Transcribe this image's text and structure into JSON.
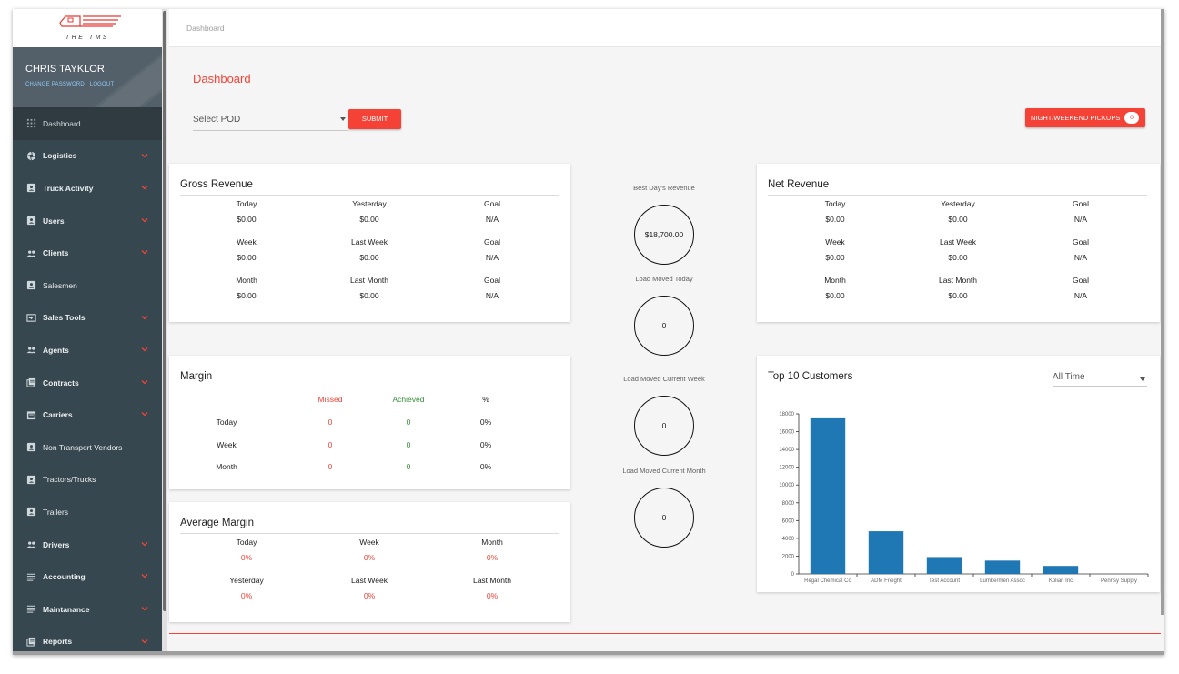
{
  "app": {
    "logo_text": "THE TMS",
    "breadcrumb": "Dashboard"
  },
  "user": {
    "name": "CHRIS TAYKLOR",
    "change_password": "CHANGE PASSWORD",
    "logout": "LOGOUT"
  },
  "sidebar": {
    "items": [
      {
        "label": "Dashboard",
        "icon": "dashboard-icon",
        "expandable": false,
        "bold": false
      },
      {
        "label": "Logistics",
        "icon": "aperture-icon",
        "expandable": true,
        "bold": true
      },
      {
        "label": "Truck Activity",
        "icon": "contact-card-icon",
        "expandable": true,
        "bold": true
      },
      {
        "label": "Users",
        "icon": "contact-card-icon",
        "expandable": true,
        "bold": true
      },
      {
        "label": "Clients",
        "icon": "people-icon",
        "expandable": true,
        "bold": true
      },
      {
        "label": "Salesmen",
        "icon": "contact-card-icon",
        "expandable": false,
        "bold": false
      },
      {
        "label": "Sales Tools",
        "icon": "input-icon",
        "expandable": true,
        "bold": true
      },
      {
        "label": "Agents",
        "icon": "people-icon",
        "expandable": true,
        "bold": true
      },
      {
        "label": "Contracts",
        "icon": "library-icon",
        "expandable": true,
        "bold": true
      },
      {
        "label": "Carriers",
        "icon": "calendar-card-icon",
        "expandable": true,
        "bold": true
      },
      {
        "label": "Non Transport Vendors",
        "icon": "contact-card-icon",
        "expandable": false,
        "bold": false
      },
      {
        "label": "Tractors/Trucks",
        "icon": "contact-card-icon",
        "expandable": false,
        "bold": false
      },
      {
        "label": "Trailers",
        "icon": "contact-card-icon",
        "expandable": false,
        "bold": false
      },
      {
        "label": "Drivers",
        "icon": "people-icon",
        "expandable": true,
        "bold": true
      },
      {
        "label": "Accounting",
        "icon": "lines-icon",
        "expandable": true,
        "bold": true
      },
      {
        "label": "Maintanance",
        "icon": "lines-icon",
        "expandable": true,
        "bold": true
      },
      {
        "label": "Reports",
        "icon": "library-icon",
        "expandable": true,
        "bold": true
      }
    ]
  },
  "main": {
    "title": "Dashboard",
    "pod_placeholder": "Select POD",
    "submit_label": "SUBMIT",
    "pickups_label": "NIGHT/WEEKEND PICKUPS",
    "pickups_count": "0"
  },
  "gross_revenue": {
    "title": "Gross Revenue",
    "rows": [
      [
        {
          "label": "Today",
          "value": "$0.00"
        },
        {
          "label": "Yesterday",
          "value": "$0.00"
        },
        {
          "label": "Goal",
          "value": "N/A"
        }
      ],
      [
        {
          "label": "Week",
          "value": "$0.00"
        },
        {
          "label": "Last Week",
          "value": "$0.00"
        },
        {
          "label": "Goal",
          "value": "N/A"
        }
      ],
      [
        {
          "label": "Month",
          "value": "$0.00"
        },
        {
          "label": "Last Month",
          "value": "$0.00"
        },
        {
          "label": "Goal",
          "value": "N/A"
        }
      ]
    ]
  },
  "net_revenue": {
    "title": "Net Revenue",
    "rows": [
      [
        {
          "label": "Today",
          "value": "$0.00"
        },
        {
          "label": "Yesterday",
          "value": "$0.00"
        },
        {
          "label": "Goal",
          "value": "N/A"
        }
      ],
      [
        {
          "label": "Week",
          "value": "$0.00"
        },
        {
          "label": "Last Week",
          "value": "$0.00"
        },
        {
          "label": "Goal",
          "value": "N/A"
        }
      ],
      [
        {
          "label": "Month",
          "value": "$0.00"
        },
        {
          "label": "Last Month",
          "value": "$0.00"
        },
        {
          "label": "Goal",
          "value": "N/A"
        }
      ]
    ]
  },
  "margin": {
    "title": "Margin",
    "headers": [
      "Missed",
      "Achieved",
      "%"
    ],
    "rows": [
      {
        "label": "Today",
        "missed": "0",
        "achieved": "0",
        "pct": "0%"
      },
      {
        "label": "Week",
        "missed": "0",
        "achieved": "0",
        "pct": "0%"
      },
      {
        "label": "Month",
        "missed": "0",
        "achieved": "0",
        "pct": "0%"
      }
    ]
  },
  "average_margin": {
    "title": "Average Margin",
    "rows": [
      [
        {
          "label": "Today",
          "value": "0%"
        },
        {
          "label": "Week",
          "value": "0%"
        },
        {
          "label": "Month",
          "value": "0%"
        }
      ],
      [
        {
          "label": "Yesterday",
          "value": "0%"
        },
        {
          "label": "Last Week",
          "value": "0%"
        },
        {
          "label": "Last Month",
          "value": "0%"
        }
      ]
    ]
  },
  "stats": [
    {
      "label": "Best Day's Revenue",
      "value": "$18,700.00"
    },
    {
      "label": "Load Moved Today",
      "value": "0"
    },
    {
      "label": "Load Moved Current Week",
      "value": "0"
    },
    {
      "label": "Load Moved Current Month",
      "value": "0"
    }
  ],
  "top_customers": {
    "title": "Top 10 Customers",
    "timeframe": "All Time"
  },
  "colors": {
    "accent": "#f44336",
    "sidebar": "#37474f",
    "bar": "#1f77b4",
    "achieved": "#388e3c"
  },
  "chart_data": {
    "type": "bar",
    "categories": [
      "Regal Chemical Co",
      "ADM Freight",
      "Test Account",
      "Lumbermen Assoc",
      "Kolian Inc",
      "Pennsy Supply"
    ],
    "values": [
      17500,
      4800,
      1900,
      1500,
      900,
      0
    ],
    "ylim": [
      0,
      18000
    ],
    "yticks": [
      0,
      2000,
      4000,
      6000,
      8000,
      10000,
      12000,
      14000,
      16000,
      18000
    ],
    "grid": false,
    "legend": "none"
  }
}
